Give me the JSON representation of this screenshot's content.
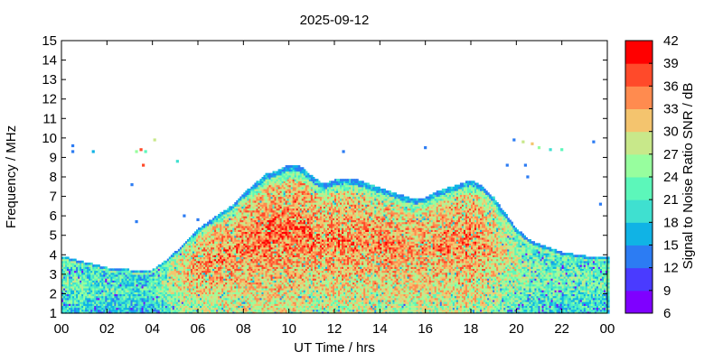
{
  "chart_data": {
    "type": "heatmap",
    "title": "2025-09-12",
    "xlabel": "UT Time / hrs",
    "ylabel": "Frequency / MHz",
    "colorbar_label": "Signal to Noise Ratio SNR / dB",
    "xlim": [
      0,
      24
    ],
    "ylim": [
      1,
      15
    ],
    "xticks": [
      "00",
      "02",
      "04",
      "06",
      "08",
      "10",
      "12",
      "14",
      "16",
      "18",
      "20",
      "22",
      "00"
    ],
    "yticks": [
      "1",
      "2",
      "3",
      "4",
      "5",
      "6",
      "7",
      "8",
      "9",
      "10",
      "11",
      "12",
      "13",
      "14",
      "15"
    ],
    "colorbar": {
      "range": [
        6,
        42
      ],
      "ticks": [
        "6",
        "9",
        "12",
        "15",
        "18",
        "21",
        "24",
        "27",
        "30",
        "33",
        "36",
        "39",
        "42"
      ],
      "colors": [
        "#7F00FF",
        "#4A3BFF",
        "#2C7CF3",
        "#10B3E5",
        "#3FE0D0",
        "#5CF7BA",
        "#97FE9E",
        "#C8E88A",
        "#F4C46E",
        "#FF8B4F",
        "#FF4A2A",
        "#FF0000"
      ]
    },
    "coverage_envelope": {
      "hours": [
        0,
        1,
        2,
        3,
        3.5,
        4,
        4.5,
        5,
        5.5,
        6,
        6.5,
        7,
        7.5,
        8,
        8.5,
        9,
        9.5,
        10,
        10.5,
        11,
        11.5,
        12,
        12.5,
        13,
        13.5,
        14,
        14.5,
        15,
        15.5,
        16,
        16.5,
        17,
        17.5,
        18,
        18.5,
        19,
        19.5,
        20,
        20.5,
        21,
        21.5,
        22,
        22.5,
        23,
        23.5,
        24
      ],
      "upper_mhz": [
        3.9,
        3.6,
        3.3,
        3.2,
        3.1,
        3.2,
        3.6,
        4.1,
        4.7,
        5.3,
        5.7,
        6.1,
        6.5,
        7.1,
        7.6,
        8.1,
        8.3,
        8.6,
        8.5,
        8.0,
        7.6,
        7.8,
        7.9,
        7.8,
        7.6,
        7.4,
        7.2,
        7.0,
        6.8,
        6.9,
        7.2,
        7.4,
        7.6,
        7.8,
        7.5,
        6.9,
        6.1,
        5.3,
        4.8,
        4.5,
        4.3,
        4.1,
        4.0,
        3.9,
        3.9,
        3.9
      ],
      "lower_mhz": [
        1.0,
        1.0,
        1.0,
        1.0,
        1.0,
        1.0,
        1.0,
        1.0,
        1.0,
        1.0,
        1.0,
        1.0,
        1.0,
        1.0,
        1.0,
        1.0,
        1.0,
        1.0,
        1.0,
        1.0,
        1.0,
        1.0,
        1.0,
        1.0,
        1.0,
        1.0,
        1.0,
        1.0,
        1.0,
        1.0,
        1.0,
        1.0,
        1.0,
        1.0,
        1.0,
        1.0,
        1.0,
        1.0,
        1.0,
        1.0,
        1.0,
        1.0,
        1.0,
        1.0,
        1.0,
        1.0
      ],
      "peak_snr_db": [
        30,
        30,
        29,
        28,
        27,
        28,
        32,
        36,
        38,
        40,
        40,
        41,
        41,
        41,
        41,
        42,
        42,
        42,
        42,
        41,
        40,
        41,
        41,
        41,
        41,
        41,
        41,
        40,
        40,
        40,
        40,
        41,
        41,
        41,
        40,
        38,
        36,
        34,
        32,
        31,
        31,
        30,
        30,
        30,
        30,
        30
      ]
    },
    "sporadic_echoes": [
      {
        "hour": 0.5,
        "mhz": 9.6,
        "snr_db": 14
      },
      {
        "hour": 0.5,
        "mhz": 9.3,
        "snr_db": 14
      },
      {
        "hour": 1.4,
        "mhz": 9.3,
        "snr_db": 16
      },
      {
        "hour": 3.3,
        "mhz": 9.3,
        "snr_db": 24
      },
      {
        "hour": 3.5,
        "mhz": 9.4,
        "snr_db": 36
      },
      {
        "hour": 3.7,
        "mhz": 9.3,
        "snr_db": 22
      },
      {
        "hour": 4.1,
        "mhz": 9.9,
        "snr_db": 27
      },
      {
        "hour": 3.6,
        "mhz": 8.6,
        "snr_db": 36
      },
      {
        "hour": 3.1,
        "mhz": 7.6,
        "snr_db": 14
      },
      {
        "hour": 3.3,
        "mhz": 5.7,
        "snr_db": 14
      },
      {
        "hour": 5.1,
        "mhz": 8.8,
        "snr_db": 20
      },
      {
        "hour": 5.4,
        "mhz": 6.0,
        "snr_db": 14
      },
      {
        "hour": 6.0,
        "mhz": 5.8,
        "snr_db": 14
      },
      {
        "hour": 12.4,
        "mhz": 9.3,
        "snr_db": 14
      },
      {
        "hour": 16.0,
        "mhz": 9.5,
        "snr_db": 14
      },
      {
        "hour": 19.6,
        "mhz": 8.6,
        "snr_db": 14
      },
      {
        "hour": 20.4,
        "mhz": 8.6,
        "snr_db": 14
      },
      {
        "hour": 20.5,
        "mhz": 8.0,
        "snr_db": 14
      },
      {
        "hour": 19.9,
        "mhz": 9.9,
        "snr_db": 14
      },
      {
        "hour": 20.3,
        "mhz": 9.8,
        "snr_db": 28
      },
      {
        "hour": 20.7,
        "mhz": 9.7,
        "snr_db": 30
      },
      {
        "hour": 21.0,
        "mhz": 9.5,
        "snr_db": 26
      },
      {
        "hour": 21.5,
        "mhz": 9.4,
        "snr_db": 20
      },
      {
        "hour": 22.0,
        "mhz": 9.4,
        "snr_db": 22
      },
      {
        "hour": 23.4,
        "mhz": 9.8,
        "snr_db": 14
      },
      {
        "hour": 23.7,
        "mhz": 6.6,
        "snr_db": 14
      }
    ]
  }
}
